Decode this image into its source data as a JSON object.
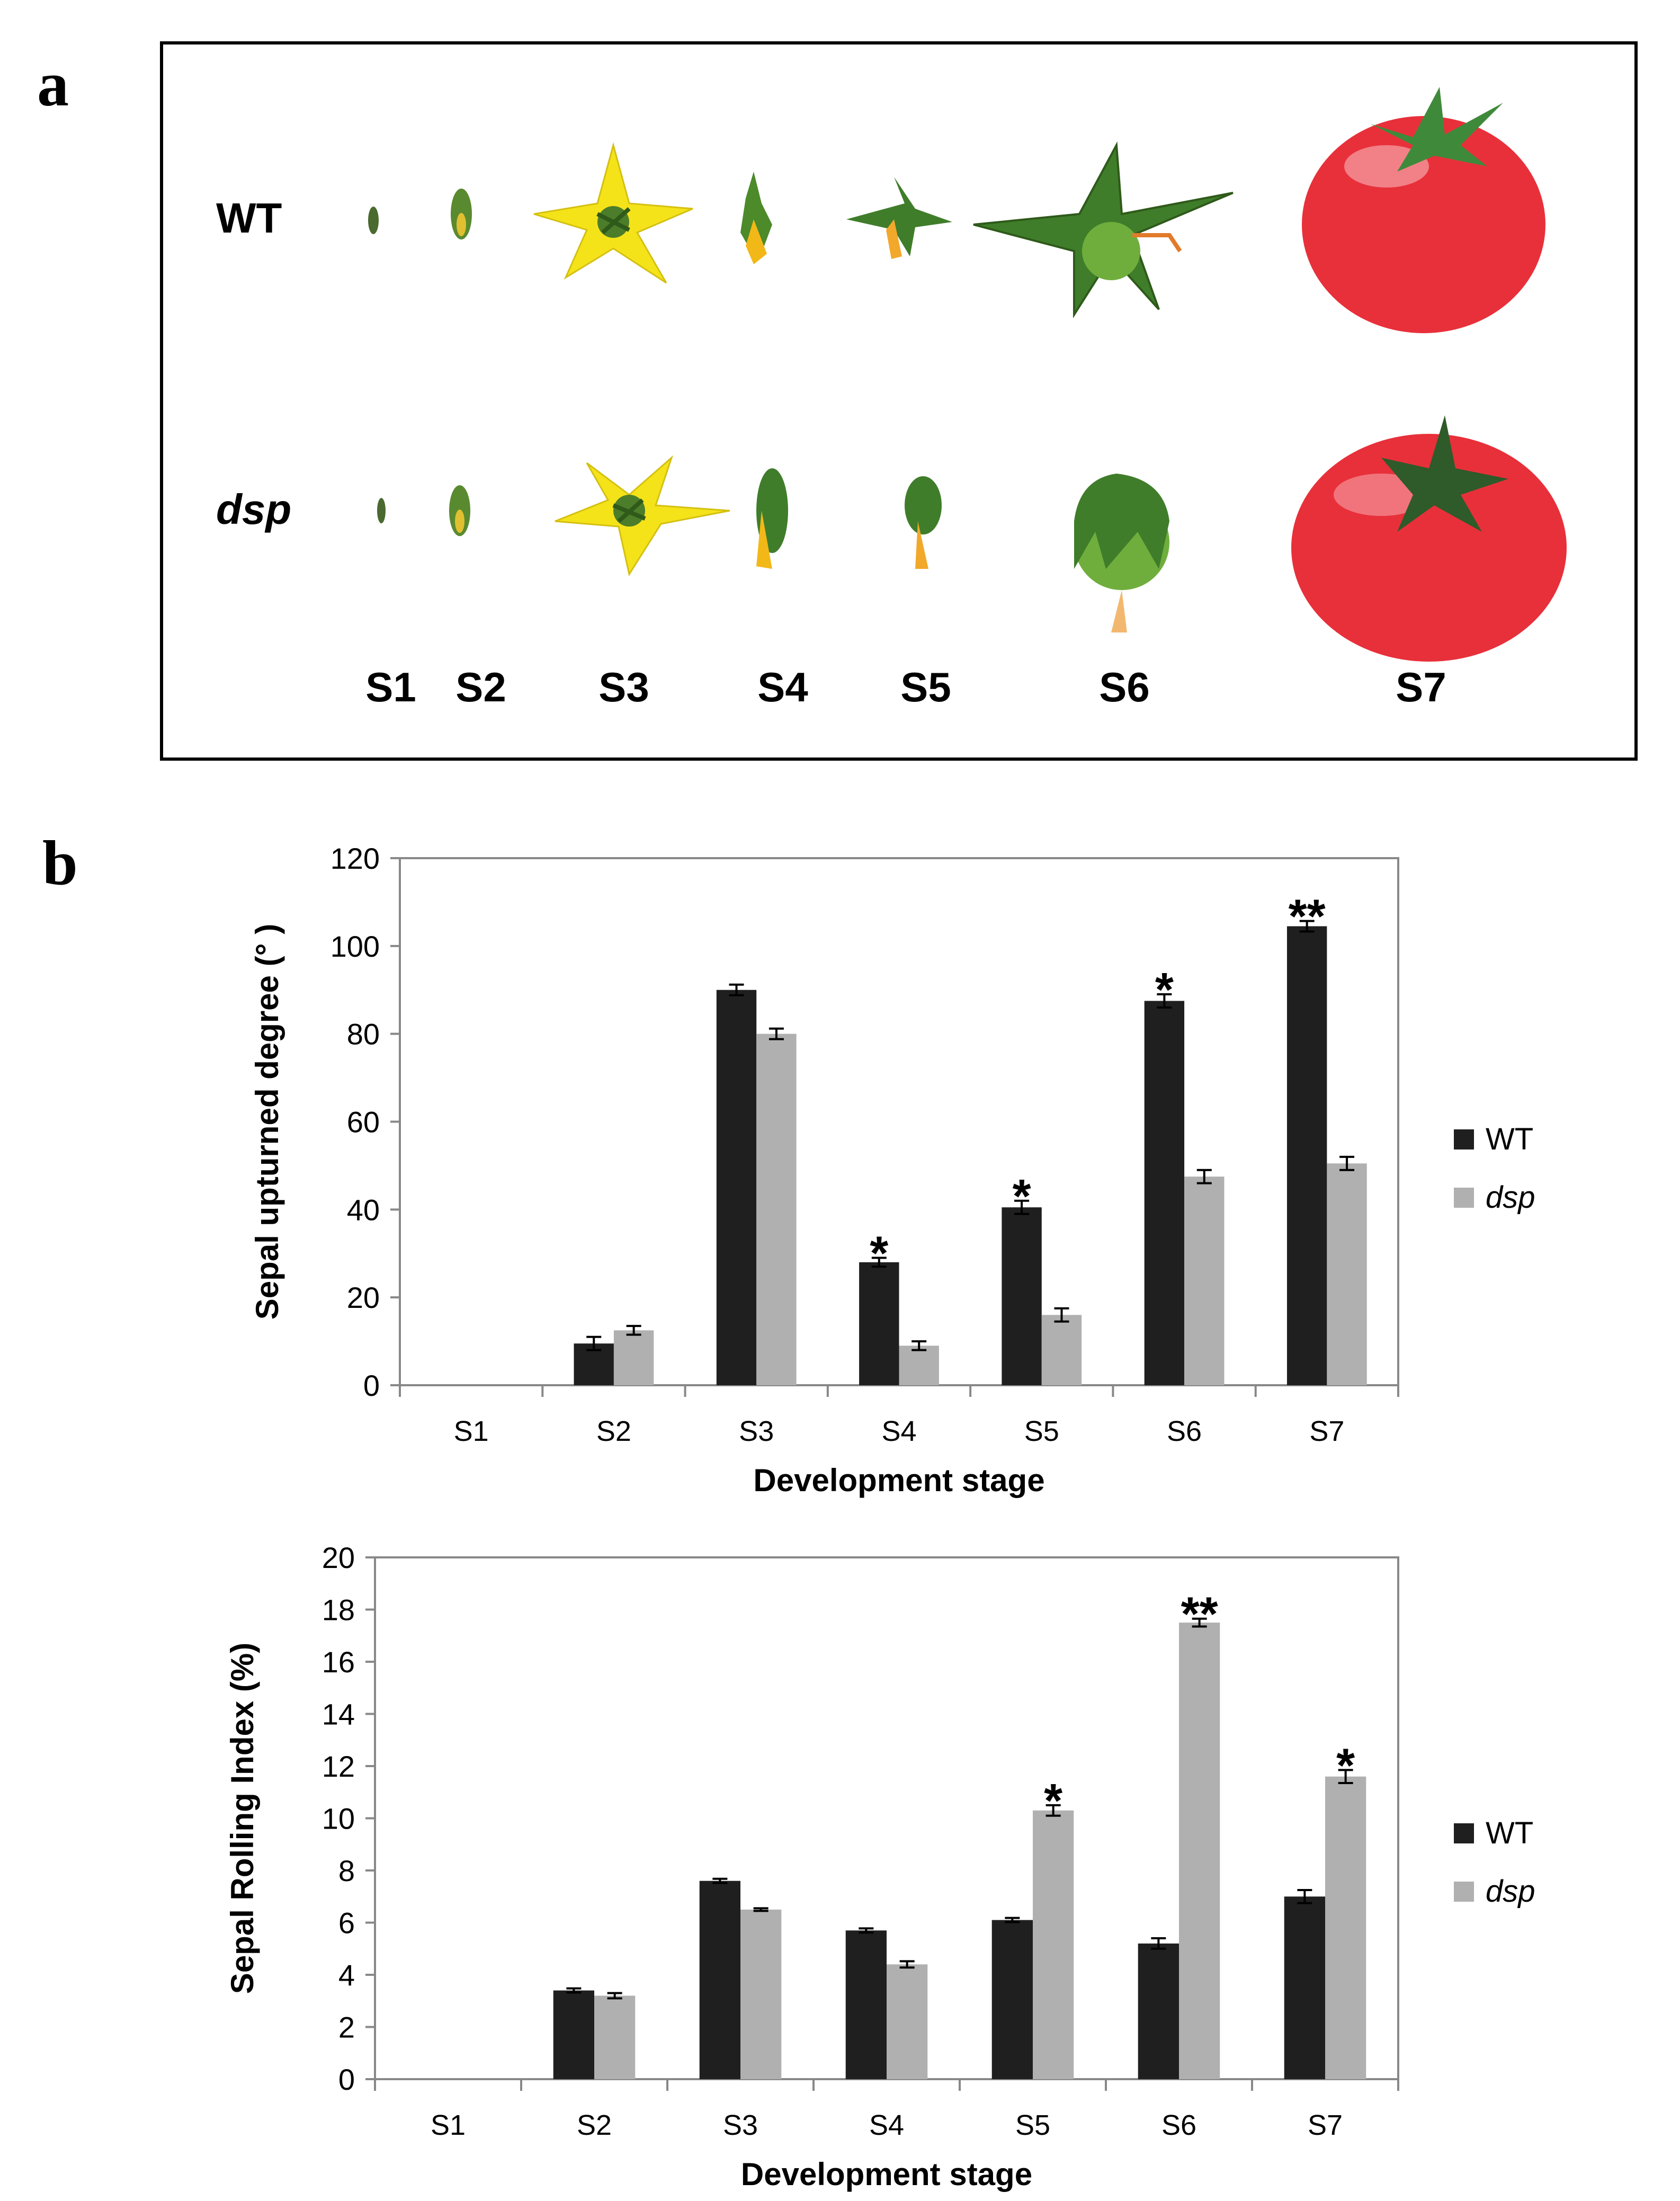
{
  "figure": {
    "panel_a_label": "a",
    "panel_b_label": "b"
  },
  "photo_panel": {
    "row_labels": [
      "WT",
      "dsp"
    ],
    "stage_labels": [
      "S1",
      "S2",
      "S3",
      "S4",
      "S5",
      "S6",
      "S7"
    ],
    "colors": {
      "flower_yellow": "#f5e31a",
      "sepal_green": "#3f7d2a",
      "fruit_green": "#6fae3c",
      "tomato_red": "#e8303a",
      "tomato_highlight": "#f7a2a8"
    }
  },
  "chart_data": [
    {
      "type": "bar",
      "title": "",
      "xlabel": "Development  stage",
      "ylabel": "Sepal upturned  degree (° )",
      "ylim": [
        0,
        120
      ],
      "yticks": [
        0,
        20,
        40,
        60,
        80,
        100,
        120
      ],
      "categories": [
        "S1",
        "S2",
        "S3",
        "S4",
        "S5",
        "S6",
        "S7"
      ],
      "series": [
        {
          "name": "WT",
          "color": "#1f1f1f",
          "values": [
            0,
            9.5,
            90,
            28,
            40.5,
            87.5,
            104.5
          ],
          "errors": [
            0,
            1.5,
            1.2,
            1.0,
            1.5,
            1.5,
            1.2
          ]
        },
        {
          "name": "dsp",
          "color": "#b0b0b0",
          "values": [
            0,
            12.5,
            80,
            9,
            16,
            47.5,
            50.5
          ],
          "errors": [
            0,
            1.0,
            1.2,
            1.0,
            1.5,
            1.5,
            1.5
          ]
        }
      ],
      "significance": [
        {
          "category": "S4",
          "series": "WT",
          "label": "*"
        },
        {
          "category": "S5",
          "series": "WT",
          "label": "*"
        },
        {
          "category": "S6",
          "series": "WT",
          "label": "*"
        },
        {
          "category": "S7",
          "series": "WT",
          "label": "**"
        }
      ],
      "legend": {
        "position": "right",
        "entries": [
          "WT",
          "dsp"
        ]
      }
    },
    {
      "type": "bar",
      "title": "",
      "xlabel": "Development  stage",
      "ylabel": "Sepal Rolling Index  (%)",
      "ylim": [
        0,
        20
      ],
      "yticks": [
        0,
        2,
        4,
        6,
        8,
        10,
        12,
        14,
        16,
        18,
        20
      ],
      "categories": [
        "S1",
        "S2",
        "S3",
        "S4",
        "S5",
        "S6",
        "S7"
      ],
      "series": [
        {
          "name": "WT",
          "color": "#1f1f1f",
          "values": [
            0,
            3.4,
            7.6,
            5.7,
            6.1,
            5.2,
            7.0
          ],
          "errors": [
            0,
            0.08,
            0.08,
            0.08,
            0.08,
            0.2,
            0.25
          ]
        },
        {
          "name": "dsp",
          "color": "#b0b0b0",
          "values": [
            0,
            3.2,
            6.5,
            4.4,
            10.3,
            17.5,
            11.6
          ],
          "errors": [
            0,
            0.1,
            0.05,
            0.12,
            0.2,
            0.15,
            0.25
          ]
        }
      ],
      "significance": [
        {
          "category": "S5",
          "series": "dsp",
          "label": "*"
        },
        {
          "category": "S6",
          "series": "dsp",
          "label": "**"
        },
        {
          "category": "S7",
          "series": "dsp",
          "label": "*"
        }
      ],
      "legend": {
        "position": "right",
        "entries": [
          "WT",
          "dsp"
        ]
      }
    }
  ]
}
